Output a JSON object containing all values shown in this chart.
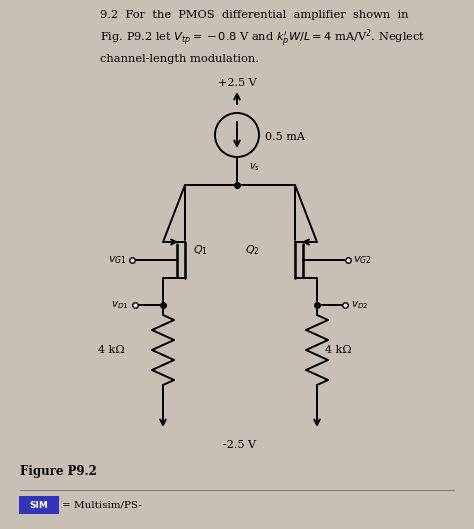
{
  "bg_color": "#c8c0b4",
  "page_color": "#e8e4dc",
  "vdd": "+2.5 V",
  "vss": "-2.5 V",
  "isource": "0.5 mA",
  "res_left": "4 kΩ",
  "res_right": "4 kΩ",
  "vg1_label": "$v_{G1}$",
  "vg2_label": "$v_{G2}$",
  "vd1_label": "$v_{D1}$",
  "vd2_label": "$v_{D2}$",
  "vs_label": "$v_s$",
  "q1_label": "$Q_1$",
  "q2_label": "$Q_2$",
  "figure_label": "Figure P9.2",
  "sim_text": "= Multisim/PS-"
}
